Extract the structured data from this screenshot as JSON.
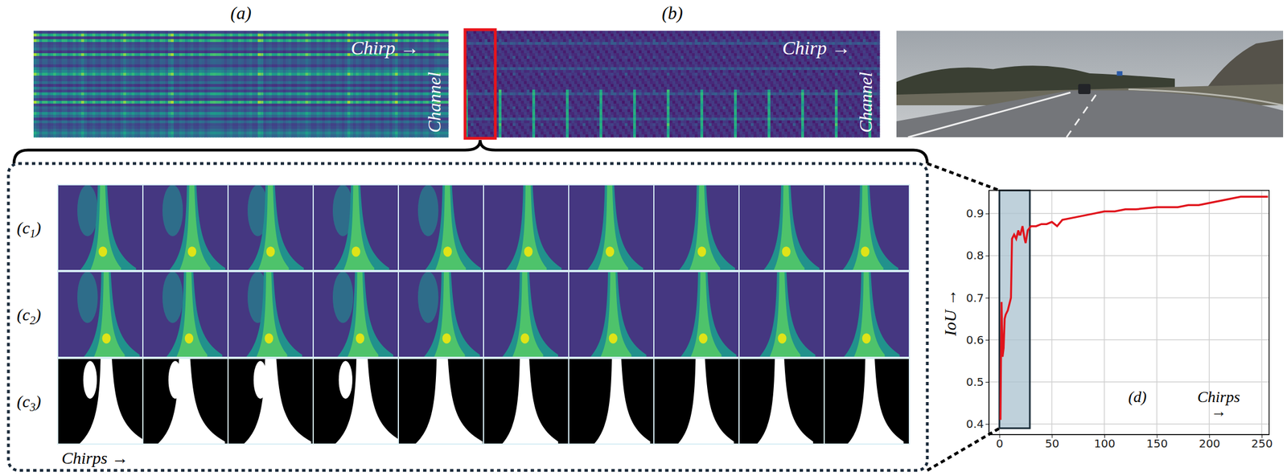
{
  "figure": {
    "panel_a": {
      "label": "(a)",
      "x_label": "Chirp →",
      "y_label": "Channel"
    },
    "panel_b": {
      "label": "(b)",
      "x_label": "Chirp →",
      "y_label": "Channel"
    },
    "panel_c": {
      "row_labels": [
        {
          "open": "(c",
          "sub": "1",
          "close": ")"
        },
        {
          "open": "(c",
          "sub": "2",
          "close": ")"
        },
        {
          "open": "(c",
          "sub": "3",
          "close": ")"
        }
      ],
      "x_label": "Chirps →"
    }
  },
  "chart_data": {
    "type": "line",
    "annotation": "(d)",
    "x_label": "Chirps →",
    "y_label": "IoU →",
    "x": [
      1,
      2,
      3,
      4,
      5,
      6,
      8,
      10,
      11,
      12,
      14,
      16,
      18,
      19,
      20,
      22,
      24,
      25,
      27,
      30,
      35,
      40,
      45,
      50,
      55,
      60,
      70,
      80,
      90,
      100,
      110,
      120,
      130,
      150,
      170,
      180,
      190,
      200,
      210,
      220,
      230,
      240,
      250,
      256
    ],
    "series": [
      {
        "name": "IoU",
        "color": "#e0141c",
        "values": [
          0.41,
          0.69,
          0.56,
          0.58,
          0.65,
          0.66,
          0.67,
          0.69,
          0.7,
          0.84,
          0.85,
          0.84,
          0.86,
          0.85,
          0.85,
          0.87,
          0.84,
          0.83,
          0.86,
          0.87,
          0.87,
          0.875,
          0.875,
          0.88,
          0.87,
          0.885,
          0.89,
          0.895,
          0.9,
          0.905,
          0.905,
          0.91,
          0.91,
          0.915,
          0.915,
          0.92,
          0.92,
          0.925,
          0.93,
          0.935,
          0.94,
          0.94,
          0.94,
          0.94
        ]
      }
    ],
    "xlim": [
      -10,
      257
    ],
    "ylim": [
      0.375,
      0.955
    ],
    "xticks": [
      0,
      50,
      100,
      150,
      200,
      250
    ],
    "yticks": [
      0.4,
      0.5,
      0.6,
      0.7,
      0.8,
      0.9
    ],
    "grid": true,
    "highlight": {
      "x": [
        0,
        29
      ],
      "y": [
        0.39,
        0.955
      ]
    }
  }
}
